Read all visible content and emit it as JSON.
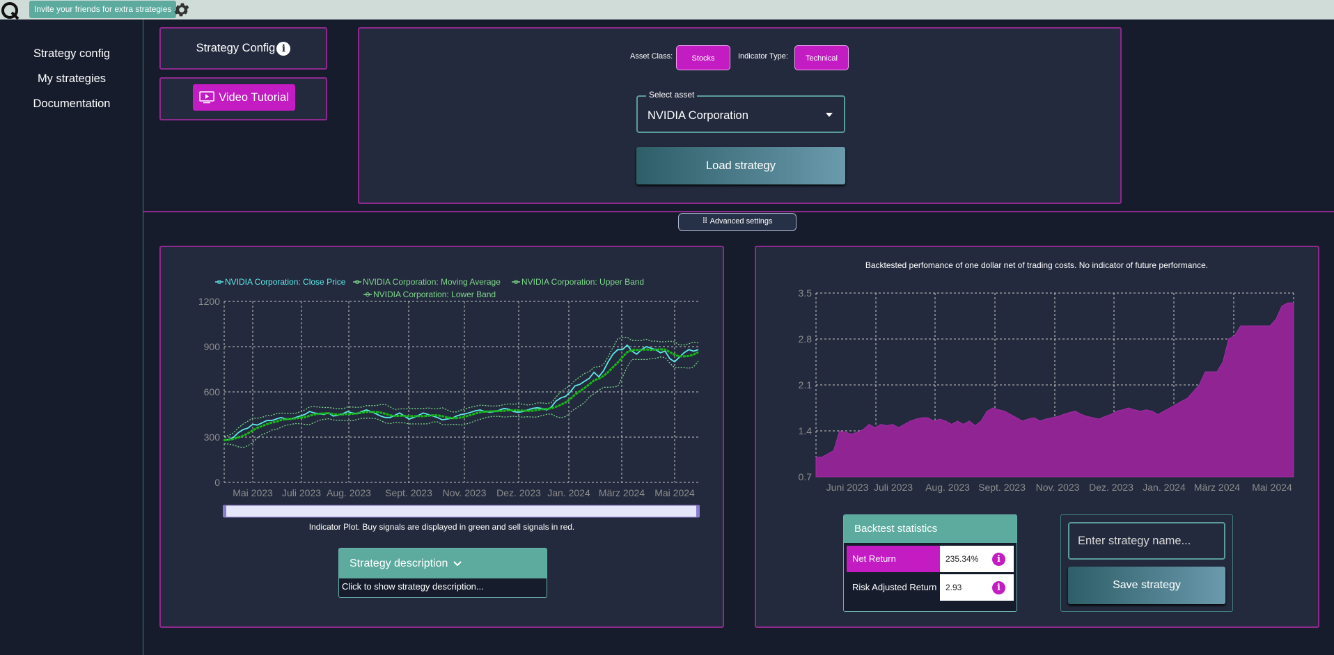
{
  "topbar": {
    "invite_text": "Invite your friends for extra strategies",
    "logo_icon": "q-logo-icon",
    "settings_icon": "gear-icon"
  },
  "sidebar": {
    "items": [
      {
        "label": "Strategy config"
      },
      {
        "label": "My strategies"
      },
      {
        "label": "Documentation"
      }
    ]
  },
  "config": {
    "title": "Strategy Config",
    "info_glyph": "i",
    "video_label": "Video Tutorial"
  },
  "selector": {
    "asset_class_label": "Asset Class:",
    "asset_class_value": "Stocks",
    "indicator_type_label": "Indicator Type:",
    "indicator_type_value": "Technical",
    "select_label": "Select asset",
    "select_value": "NVIDIA Corporation",
    "load_label": "Load strategy"
  },
  "advanced": {
    "label": "⠿ Advanced settings"
  },
  "indicator": {
    "caption": "Indicator Plot. Buy signals are displayed in green and sell signals in red.",
    "description_title": "Strategy description",
    "description_hint": "Click to show strategy description..."
  },
  "backtest": {
    "stats_title": "Backtest statistics",
    "rows": [
      {
        "label": "Net Return",
        "value": "235.34%"
      },
      {
        "label": "Risk Adjusted Return",
        "value": "2.93"
      }
    ],
    "name_placeholder": "Enter strategy name...",
    "save_label": "Save strategy"
  },
  "colors": {
    "accent": "#c21cc2",
    "teal": "#5cab9e",
    "panel_border": "#8e2a8e",
    "close": "#5fe8e8",
    "ma": "#19b819",
    "bands": "#7ed68a",
    "perf_fill": "#8f2492"
  },
  "chart_data": [
    {
      "type": "line",
      "title": "",
      "legend": [
        "NVIDIA Corporation: Close Price",
        "NVIDIA Corporation: Moving Average",
        "NVIDIA Corporation: Upper Band",
        "NVIDIA Corporation: Lower Band"
      ],
      "xticks": [
        "Mai 2023",
        "Juli 2023",
        "Aug. 2023",
        "Sept. 2023",
        "Nov. 2023",
        "Dez. 2023",
        "Jan. 2024",
        "März 2024",
        "Mai 2024"
      ],
      "yticks": [
        0,
        300,
        600,
        900,
        1200
      ],
      "ylim": [
        0,
        1200
      ],
      "grid": true,
      "close": [
        280,
        285,
        300,
        330,
        350,
        360,
        385,
        380,
        395,
        410,
        410,
        420,
        430,
        420,
        420,
        430,
        440,
        450,
        470,
        460,
        455,
        450,
        460,
        440,
        445,
        455,
        470,
        460,
        455,
        470,
        480,
        470,
        455,
        440,
        430,
        430,
        445,
        460,
        440,
        420,
        430,
        445,
        460,
        450,
        440,
        430,
        415,
        420,
        425,
        440,
        450,
        455,
        465,
        475,
        480,
        470,
        465,
        470,
        478,
        490,
        485,
        470,
        465,
        470,
        480,
        490,
        495,
        490,
        480,
        500,
        540,
        560,
        570,
        600,
        640,
        650,
        670,
        690,
        730,
        700,
        740,
        800,
        850,
        880,
        880,
        910,
        870,
        850,
        880,
        900,
        890,
        880,
        860,
        870,
        820,
        800,
        830,
        860,
        880,
        870,
        880
      ]
    },
    {
      "type": "area",
      "title": "Backtested perfomance of one dollar net of trading costs. No indicator of future performance.",
      "xticks": [
        "Juni 2023",
        "Juli 2023",
        "Aug. 2023",
        "Sept. 2023",
        "Nov. 2023",
        "Dez. 2023",
        "Jan. 2024",
        "März 2024",
        "Mai 2024"
      ],
      "yticks": [
        0.7,
        1.4,
        2.1,
        2.8,
        3.5
      ],
      "ylim": [
        0.7,
        3.5
      ],
      "grid": true,
      "values": [
        1.0,
        1.0,
        1.05,
        1.1,
        1.4,
        1.38,
        1.35,
        1.38,
        1.42,
        1.5,
        1.45,
        1.5,
        1.48,
        1.5,
        1.45,
        1.5,
        1.55,
        1.58,
        1.6,
        1.6,
        1.55,
        1.58,
        1.55,
        1.5,
        1.55,
        1.5,
        1.55,
        1.48,
        1.55,
        1.7,
        1.75,
        1.72,
        1.7,
        1.65,
        1.6,
        1.55,
        1.58,
        1.6,
        1.55,
        1.58,
        1.6,
        1.62,
        1.65,
        1.68,
        1.7,
        1.65,
        1.62,
        1.6,
        1.58,
        1.62,
        1.65,
        1.7,
        1.72,
        1.75,
        1.72,
        1.7,
        1.72,
        1.7,
        1.65,
        1.7,
        1.75,
        1.8,
        1.85,
        1.9,
        2.0,
        2.1,
        2.3,
        2.3,
        2.3,
        2.45,
        2.8,
        2.85,
        3.0,
        3.0,
        3.0,
        3.0,
        3.0,
        3.0,
        3.1,
        3.3,
        3.35,
        3.35
      ]
    }
  ]
}
